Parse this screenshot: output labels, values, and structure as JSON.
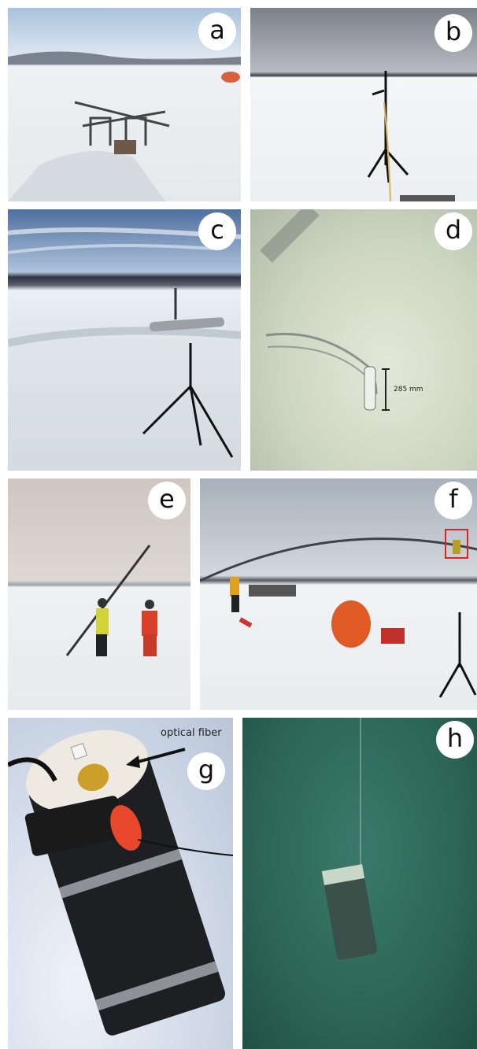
{
  "panels": [
    {
      "label": "a"
    },
    {
      "label": "b"
    },
    {
      "label": "c"
    },
    {
      "label": "d",
      "annotation": "285 mm"
    },
    {
      "label": "e"
    },
    {
      "label": "f"
    },
    {
      "label": "g",
      "annotation": "optical fiber"
    },
    {
      "label": "h"
    }
  ]
}
